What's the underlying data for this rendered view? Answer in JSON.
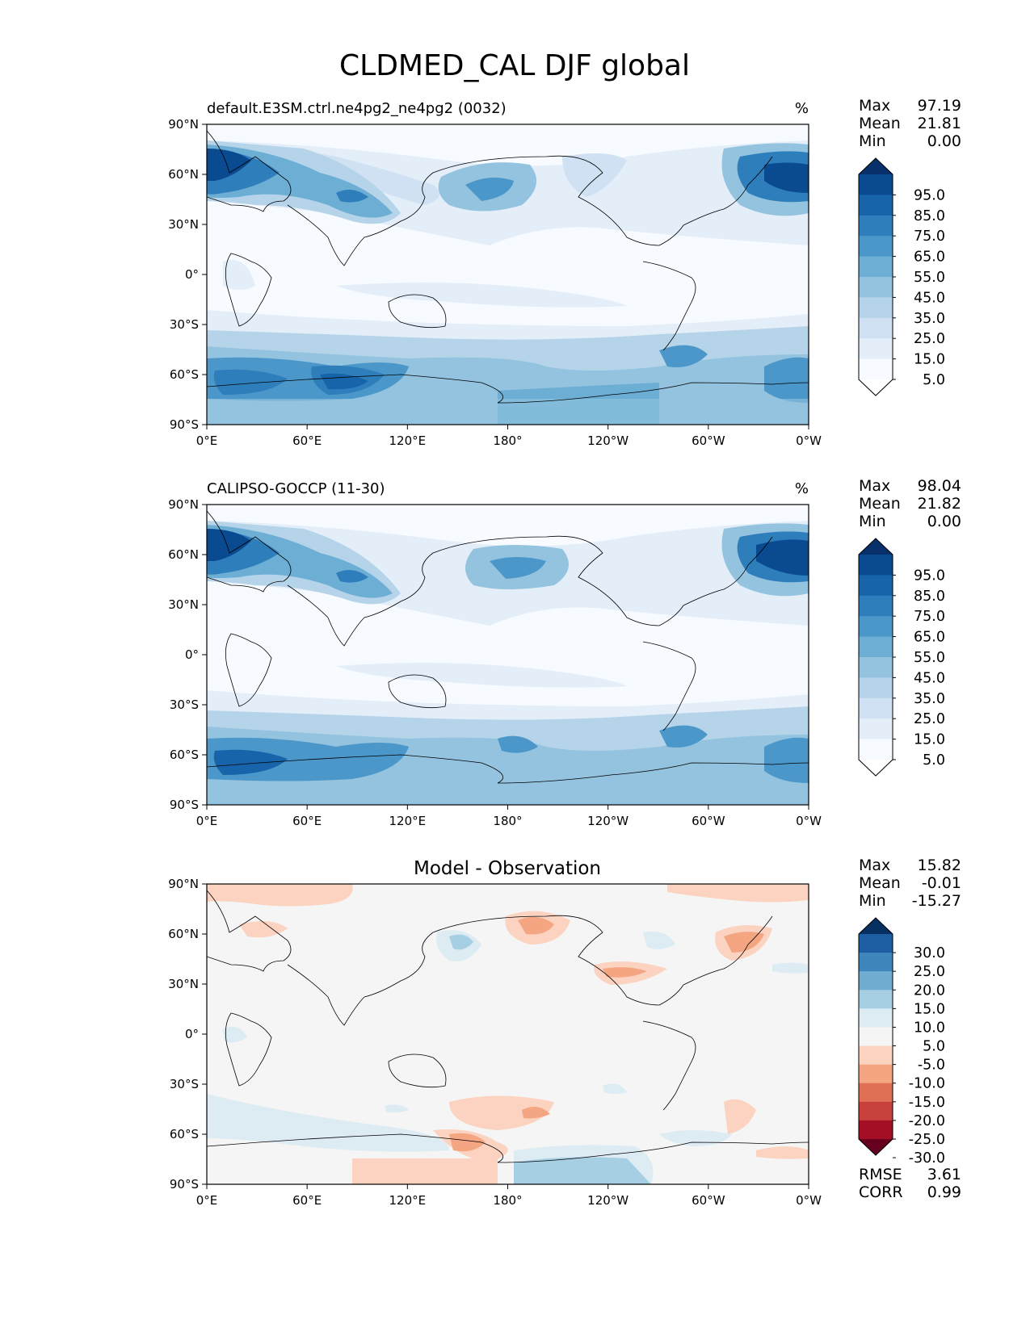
{
  "figure": {
    "title": "CLDMED_CAL DJF global"
  },
  "axes": {
    "lon_tick_labels": [
      "0°E",
      "60°E",
      "120°E",
      "180°",
      "120°W",
      "60°W",
      "0°W"
    ],
    "lat_tick_labels": [
      "90°N",
      "60°N",
      "30°N",
      "0°",
      "30°S",
      "60°S",
      "90°S"
    ]
  },
  "panels": [
    {
      "id": "test",
      "title": "default.E3SM.ctrl.ne4pg2_ne4pg2 (0032)",
      "units": "%",
      "stats": [
        {
          "label": "Max",
          "value": "97.19"
        },
        {
          "label": "Mean",
          "value": "21.81"
        },
        {
          "label": "Min",
          "value": "0.00"
        }
      ],
      "colorbar": {
        "labels": [
          "95.0",
          "85.0",
          "75.0",
          "65.0",
          "55.0",
          "45.0",
          "35.0",
          "25.0",
          "15.0",
          "5.0"
        ],
        "colors": [
          "#ffffff",
          "#f7fbff",
          "#e3eef9",
          "#cfe1f2",
          "#b5d4e9",
          "#93c3df",
          "#6daed5",
          "#4b97c9",
          "#2f7ebc",
          "#1864aa",
          "#0a4a90",
          "#08306b"
        ]
      }
    },
    {
      "id": "ref",
      "title": "CALIPSO-GOCCP (11-30)",
      "units": "%",
      "stats": [
        {
          "label": "Max",
          "value": "98.04"
        },
        {
          "label": "Mean",
          "value": "21.82"
        },
        {
          "label": "Min",
          "value": "0.00"
        }
      ],
      "colorbar": {
        "labels": [
          "95.0",
          "85.0",
          "75.0",
          "65.0",
          "55.0",
          "45.0",
          "35.0",
          "25.0",
          "15.0",
          "5.0"
        ],
        "colors": [
          "#ffffff",
          "#f7fbff",
          "#e3eef9",
          "#cfe1f2",
          "#b5d4e9",
          "#93c3df",
          "#6daed5",
          "#4b97c9",
          "#2f7ebc",
          "#1864aa",
          "#0a4a90",
          "#08306b"
        ]
      }
    },
    {
      "id": "diff",
      "title": "Model - Observation",
      "units": "",
      "stats": [
        {
          "label": "Max",
          "value": "15.82"
        },
        {
          "label": "Mean",
          "value": "-0.01"
        },
        {
          "label": "Min",
          "value": "-15.27"
        }
      ],
      "extra_stats": [
        {
          "label": "RMSE",
          "value": "3.61"
        },
        {
          "label": "CORR",
          "value": "0.99"
        }
      ],
      "colorbar": {
        "labels": [
          "30.0",
          "25.0",
          "20.0",
          "15.0",
          "10.0",
          "5.0",
          "-5.0",
          "-10.0",
          "-15.0",
          "-20.0",
          "-25.0",
          "-30.0"
        ],
        "colors": [
          "#67001f",
          "#a50f26",
          "#c8403c",
          "#e07055",
          "#f4a582",
          "#fbd3c0",
          "#f5f5f5",
          "#ddebf3",
          "#a7cfe4",
          "#6faccf",
          "#3f86bc",
          "#1d5ea3",
          "#053061"
        ]
      }
    }
  ]
}
